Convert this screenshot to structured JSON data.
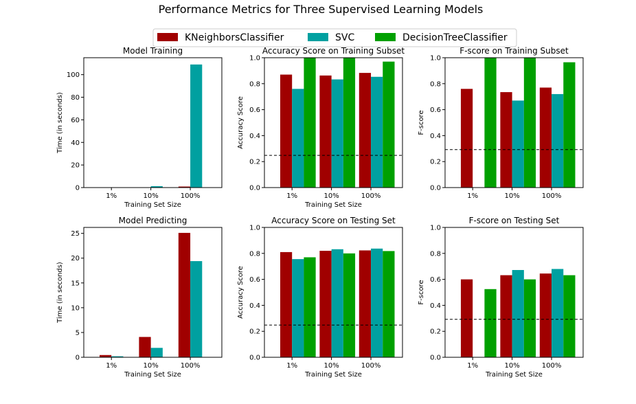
{
  "title": "Performance Metrics for Three Supervised Learning Models",
  "colors": {
    "KNeighborsClassifier": "#a00000",
    "SVC": "#00a0a0",
    "DecisionTreeClassifier": "#00a000"
  },
  "legend": {
    "placement": "top-center",
    "entries": [
      "KNeighborsClassifier",
      "SVC",
      "DecisionTreeClassifier"
    ]
  },
  "chart_data": [
    {
      "type": "bar",
      "title": "Model Training",
      "xlabel": "Training Set Size",
      "ylabel": "Time (in seconds)",
      "categories": [
        "1%",
        "10%",
        "100%"
      ],
      "ylim": [
        0,
        115
      ],
      "yticks": [
        0,
        20,
        40,
        60,
        80,
        100
      ],
      "yticklabels": [
        "0",
        "20",
        "40",
        "60",
        "80",
        "100"
      ],
      "baseline": null,
      "series": [
        {
          "name": "KNeighborsClassifier",
          "values": [
            0.01,
            0.05,
            0.9
          ]
        },
        {
          "name": "SVC",
          "values": [
            0.02,
            1.2,
            109
          ]
        },
        {
          "name": "DecisionTreeClassifier",
          "values": [
            0.002,
            0.02,
            0.3
          ]
        }
      ]
    },
    {
      "type": "bar",
      "title": "Accuracy Score on Training Subset",
      "xlabel": "Training Set Size",
      "ylabel": "Accuracy Score",
      "categories": [
        "1%",
        "10%",
        "100%"
      ],
      "ylim": [
        0,
        1.0
      ],
      "yticks": [
        0,
        0.2,
        0.4,
        0.6,
        0.8,
        1.0
      ],
      "yticklabels": [
        "0.0",
        "0.2",
        "0.4",
        "0.6",
        "0.8",
        "1.0"
      ],
      "baseline": 0.248,
      "series": [
        {
          "name": "KNeighborsClassifier",
          "values": [
            0.87,
            0.863,
            0.883
          ]
        },
        {
          "name": "SVC",
          "values": [
            0.76,
            0.833,
            0.853
          ]
        },
        {
          "name": "DecisionTreeClassifier",
          "values": [
            1.0,
            1.0,
            0.97
          ]
        }
      ]
    },
    {
      "type": "bar",
      "title": "F-score on Training Subset",
      "xlabel": "",
      "ylabel": "F-score",
      "categories": [
        "1%",
        "10%",
        "100%"
      ],
      "ylim": [
        0,
        1.0
      ],
      "yticks": [
        0,
        0.2,
        0.4,
        0.6,
        0.8,
        1.0
      ],
      "yticklabels": [
        "0.0",
        "0.2",
        "0.4",
        "0.6",
        "0.8",
        "1.0"
      ],
      "baseline": 0.292,
      "series": [
        {
          "name": "KNeighborsClassifier",
          "values": [
            0.76,
            0.735,
            0.77
          ]
        },
        {
          "name": "SVC",
          "values": [
            0.0,
            0.67,
            0.72
          ]
        },
        {
          "name": "DecisionTreeClassifier",
          "values": [
            1.0,
            1.0,
            0.965
          ]
        }
      ]
    },
    {
      "type": "bar",
      "title": "Model Predicting",
      "xlabel": "Training Set Size",
      "ylabel": "Time (in seconds)",
      "categories": [
        "1%",
        "10%",
        "100%"
      ],
      "ylim": [
        0,
        26.2
      ],
      "yticks": [
        0,
        5,
        10,
        15,
        20,
        25
      ],
      "yticklabels": [
        "0",
        "5",
        "10",
        "15",
        "20",
        "25"
      ],
      "baseline": null,
      "series": [
        {
          "name": "KNeighborsClassifier",
          "values": [
            0.45,
            4.1,
            25.1
          ]
        },
        {
          "name": "SVC",
          "values": [
            0.2,
            1.9,
            19.4
          ]
        },
        {
          "name": "DecisionTreeClassifier",
          "values": [
            0.01,
            0.01,
            0.02
          ]
        }
      ]
    },
    {
      "type": "bar",
      "title": "Accuracy Score on Testing Set",
      "xlabel": "Training Set Size",
      "ylabel": "Accuracy Score",
      "categories": [
        "1%",
        "10%",
        "100%"
      ],
      "ylim": [
        0,
        1.0
      ],
      "yticks": [
        0,
        0.2,
        0.4,
        0.6,
        0.8,
        1.0
      ],
      "yticklabels": [
        "0.0",
        "0.2",
        "0.4",
        "0.6",
        "0.8",
        "1.0"
      ],
      "baseline": 0.248,
      "series": [
        {
          "name": "KNeighborsClassifier",
          "values": [
            0.81,
            0.82,
            0.823
          ]
        },
        {
          "name": "SVC",
          "values": [
            0.756,
            0.832,
            0.837
          ]
        },
        {
          "name": "DecisionTreeClassifier",
          "values": [
            0.77,
            0.8,
            0.818
          ]
        }
      ]
    },
    {
      "type": "bar",
      "title": "F-score on Testing Set",
      "xlabel": "Training Set Size",
      "ylabel": "F-score",
      "categories": [
        "1%",
        "10%",
        "100%"
      ],
      "ylim": [
        0,
        1.0
      ],
      "yticks": [
        0,
        0.2,
        0.4,
        0.6,
        0.8,
        1.0
      ],
      "yticklabels": [
        "0.0",
        "0.2",
        "0.4",
        "0.6",
        "0.8",
        "1.0"
      ],
      "baseline": 0.292,
      "series": [
        {
          "name": "KNeighborsClassifier",
          "values": [
            0.6,
            0.632,
            0.645
          ]
        },
        {
          "name": "SVC",
          "values": [
            0.0,
            0.672,
            0.68
          ]
        },
        {
          "name": "DecisionTreeClassifier",
          "values": [
            0.525,
            0.6,
            0.632
          ]
        }
      ]
    }
  ]
}
